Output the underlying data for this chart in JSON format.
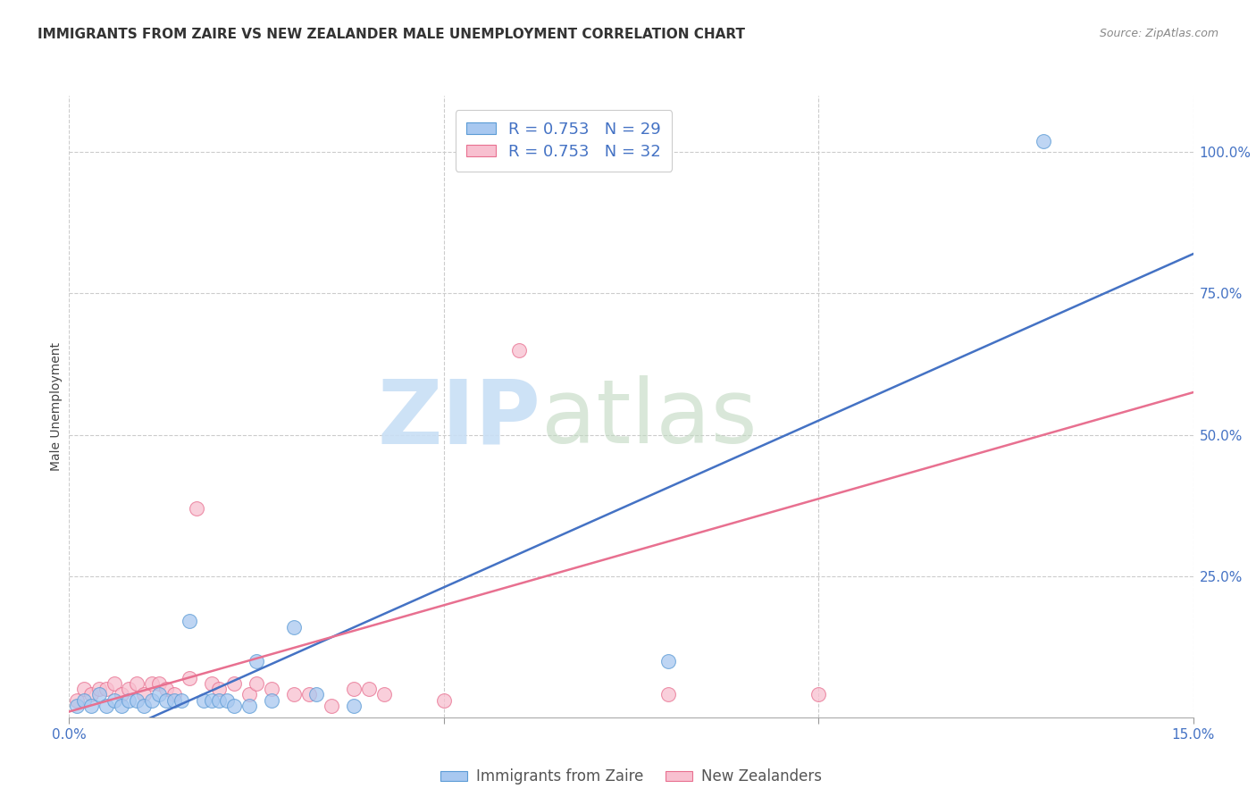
{
  "title": "IMMIGRANTS FROM ZAIRE VS NEW ZEALANDER MALE UNEMPLOYMENT CORRELATION CHART",
  "source": "Source: ZipAtlas.com",
  "ylabel": "Male Unemployment",
  "xlim": [
    0.0,
    0.15
  ],
  "ylim": [
    0.0,
    1.1
  ],
  "right_ytick_labels": [
    "25.0%",
    "50.0%",
    "75.0%",
    "100.0%"
  ],
  "right_ytick_values": [
    0.25,
    0.5,
    0.75,
    1.0
  ],
  "xtick_labels": [
    "0.0%",
    "",
    "",
    "15.0%"
  ],
  "xtick_values": [
    0.0,
    0.05,
    0.1,
    0.15
  ],
  "blue_color": "#A8C8F0",
  "blue_edge_color": "#5B9BD5",
  "blue_line_color": "#4472C4",
  "pink_color": "#F8C0D0",
  "pink_edge_color": "#E87090",
  "pink_line_color": "#E87090",
  "blue_R": 0.753,
  "blue_N": 29,
  "pink_R": 0.753,
  "pink_N": 32,
  "watermark_zip": "ZIP",
  "watermark_atlas": "atlas",
  "blue_scatter_x": [
    0.001,
    0.002,
    0.003,
    0.004,
    0.005,
    0.006,
    0.007,
    0.008,
    0.009,
    0.01,
    0.011,
    0.012,
    0.013,
    0.014,
    0.015,
    0.016,
    0.018,
    0.019,
    0.02,
    0.021,
    0.022,
    0.024,
    0.025,
    0.027,
    0.03,
    0.033,
    0.038,
    0.08,
    0.13
  ],
  "blue_scatter_y": [
    0.02,
    0.03,
    0.02,
    0.04,
    0.02,
    0.03,
    0.02,
    0.03,
    0.03,
    0.02,
    0.03,
    0.04,
    0.03,
    0.03,
    0.03,
    0.17,
    0.03,
    0.03,
    0.03,
    0.03,
    0.02,
    0.02,
    0.1,
    0.03,
    0.16,
    0.04,
    0.02,
    0.1,
    1.02
  ],
  "pink_scatter_x": [
    0.001,
    0.002,
    0.003,
    0.004,
    0.005,
    0.006,
    0.007,
    0.008,
    0.009,
    0.01,
    0.011,
    0.012,
    0.013,
    0.014,
    0.016,
    0.017,
    0.019,
    0.02,
    0.022,
    0.024,
    0.025,
    0.027,
    0.03,
    0.032,
    0.035,
    0.038,
    0.04,
    0.042,
    0.05,
    0.06,
    0.08,
    0.1
  ],
  "pink_scatter_y": [
    0.03,
    0.05,
    0.04,
    0.05,
    0.05,
    0.06,
    0.04,
    0.05,
    0.06,
    0.04,
    0.06,
    0.06,
    0.05,
    0.04,
    0.07,
    0.37,
    0.06,
    0.05,
    0.06,
    0.04,
    0.06,
    0.05,
    0.04,
    0.04,
    0.02,
    0.05,
    0.05,
    0.04,
    0.03,
    0.65,
    0.04,
    0.04
  ],
  "blue_line_x": [
    0.0,
    0.15
  ],
  "blue_line_y": [
    -0.065,
    0.82
  ],
  "pink_line_x": [
    0.0,
    0.15
  ],
  "pink_line_y": [
    0.01,
    0.575
  ],
  "background_color": "#FFFFFF",
  "grid_color": "#CCCCCC",
  "title_fontsize": 11,
  "axis_label_fontsize": 10,
  "tick_fontsize": 11,
  "marker_size": 130
}
